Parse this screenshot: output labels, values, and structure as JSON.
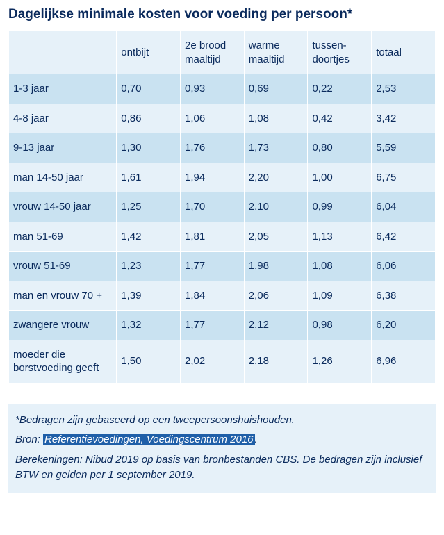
{
  "title": "Dagelijkse minimale kosten voor voeding per persoon*",
  "colors": {
    "text": "#0a2a5c",
    "zebra_dark": "#c9e2f1",
    "zebra_light": "#e6f1f9",
    "highlight_bg": "#1f5fa8",
    "highlight_text": "#ffffff",
    "background": "#ffffff"
  },
  "table": {
    "type": "table",
    "columns": [
      "",
      "ontbijt",
      "2e brood maaltijd",
      "warme maaltijd",
      "tussen-doortjes",
      "totaal"
    ],
    "rows": [
      {
        "label": "1-3 jaar",
        "values": [
          "0,70",
          "0,93",
          "0,69",
          "0,22",
          "2,53"
        ]
      },
      {
        "label": "4-8 jaar",
        "values": [
          "0,86",
          "1,06",
          "1,08",
          "0,42",
          "3,42"
        ]
      },
      {
        "label": "9-13 jaar",
        "values": [
          "1,30",
          "1,76",
          "1,73",
          "0,80",
          "5,59"
        ]
      },
      {
        "label": "man 14-50 jaar",
        "values": [
          "1,61",
          "1,94",
          "2,20",
          "1,00",
          "6,75"
        ]
      },
      {
        "label": "vrouw 14-50 jaar",
        "values": [
          "1,25",
          "1,70",
          "2,10",
          "0,99",
          "6,04"
        ]
      },
      {
        "label": "man 51-69",
        "values": [
          "1,42",
          "1,81",
          "2,05",
          "1,13",
          "6,42"
        ]
      },
      {
        "label": "vrouw 51-69",
        "values": [
          "1,23",
          "1,77",
          "1,98",
          "1,08",
          "6,06"
        ]
      },
      {
        "label": "man en vrouw 70 +",
        "values": [
          "1,39",
          "1,84",
          "2,06",
          "1,09",
          "6,38"
        ]
      },
      {
        "label": "zwangere vrouw",
        "values": [
          "1,32",
          "1,77",
          "2,12",
          "0,98",
          "6,20"
        ]
      },
      {
        "label": "moeder die borstvoeding geeft",
        "values": [
          "1,50",
          "2,02",
          "2,18",
          "1,26",
          "6,96"
        ]
      }
    ]
  },
  "footnotes": {
    "line1": "*Bedragen zijn gebaseerd op een tweepersoonshuishouden.",
    "line2_prefix": "Bron: ",
    "line2_highlight": "Referentievoedingen, Voedingscentrum 2016",
    "line2_suffix": ".",
    "line3": "Berekeningen: Nibud 2019 op basis van bronbestanden CBS. De bedragen zijn inclusief BTW en gelden per 1 september 2019."
  }
}
